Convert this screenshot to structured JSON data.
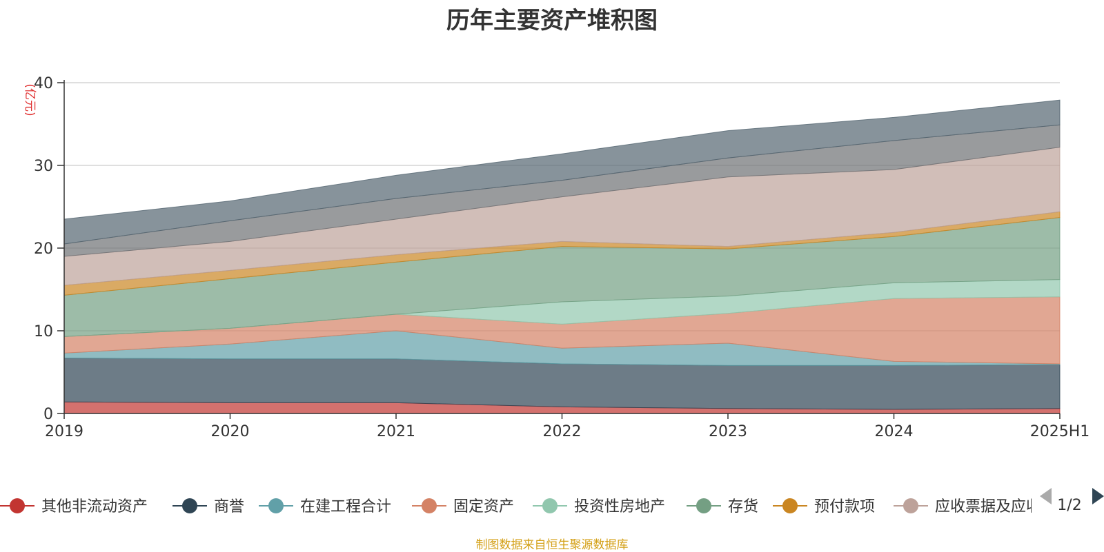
{
  "chart_data": {
    "type": "area",
    "stacked": true,
    "title": "历年主要资产堆积图",
    "ylabel": "(亿元)",
    "ylim": [
      0,
      40
    ],
    "yticks": [
      0,
      10,
      20,
      30,
      40
    ],
    "x": [
      "2019",
      "2020",
      "2021",
      "2022",
      "2023",
      "2024",
      "2025H1"
    ],
    "grid": true,
    "legend_position": "bottom",
    "legend_page": "1/2",
    "series": [
      {
        "name": "其他非流动资产",
        "color": "#c23531",
        "values": [
          1.4,
          1.3,
          1.3,
          0.8,
          0.6,
          0.5,
          0.6
        ]
      },
      {
        "name": "商誉",
        "color": "#2f4554",
        "values": [
          5.3,
          5.3,
          5.3,
          5.2,
          5.2,
          5.3,
          5.3
        ]
      },
      {
        "name": "在建工程合计",
        "color": "#61a0a8",
        "values": [
          0.6,
          1.8,
          3.4,
          1.9,
          2.7,
          0.5,
          0.1
        ]
      },
      {
        "name": "固定资产",
        "color": "#d48265",
        "values": [
          2.0,
          1.9,
          2.0,
          2.9,
          3.6,
          7.6,
          8.1
        ]
      },
      {
        "name": "投资性房地产",
        "color": "#91c7ae",
        "values": [
          0.0,
          0.0,
          0.0,
          2.7,
          2.1,
          1.9,
          2.1
        ]
      },
      {
        "name": "存货",
        "color": "#749f83",
        "values": [
          5.0,
          6.0,
          6.3,
          6.7,
          5.7,
          5.6,
          7.5
        ]
      },
      {
        "name": "预付款项",
        "color": "#ca8622",
        "values": [
          1.2,
          1.0,
          0.9,
          0.6,
          0.3,
          0.5,
          0.7
        ]
      },
      {
        "name": "应收票据及应收账款",
        "color": "#bda29a",
        "values": [
          3.5,
          3.5,
          4.3,
          5.4,
          8.4,
          7.6,
          7.8
        ]
      },
      {
        "name": "",
        "color": "#6e7074",
        "values": [
          1.5,
          2.5,
          2.5,
          2.0,
          2.3,
          3.5,
          2.7
        ]
      },
      {
        "name": "",
        "color": "#546570",
        "values": [
          3.0,
          2.4,
          2.8,
          3.2,
          3.3,
          2.8,
          3.0
        ]
      }
    ]
  },
  "source_note": "制图数据来自恒生聚源数据库"
}
